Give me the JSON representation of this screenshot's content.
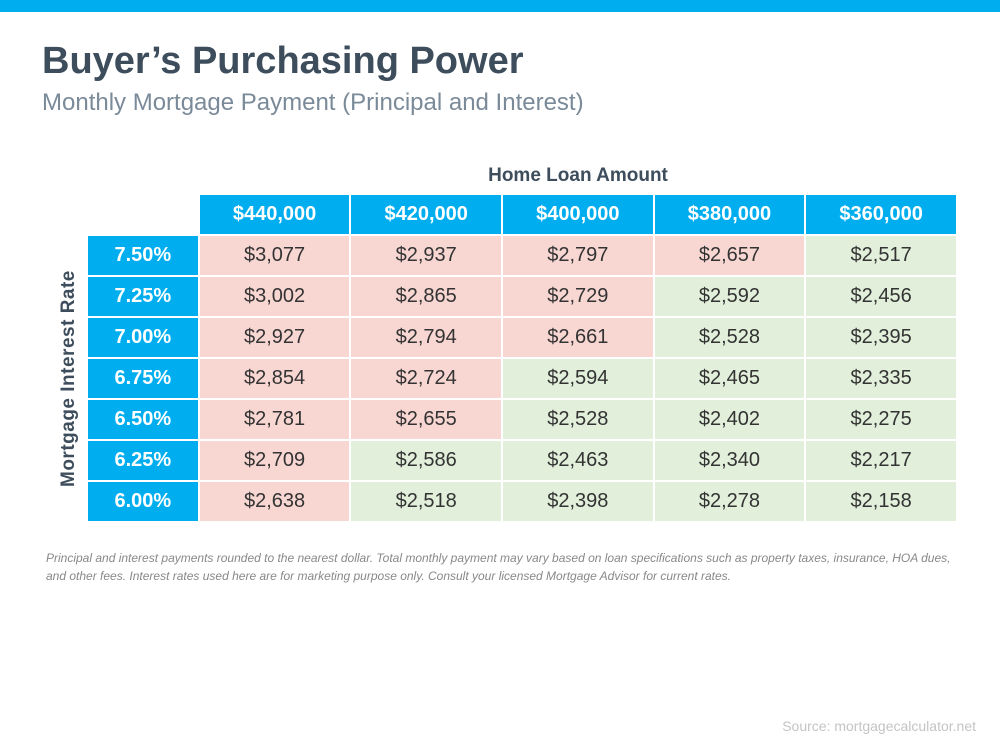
{
  "colors": {
    "accent": "#00aeef",
    "title": "#3d4d5c",
    "subtitle": "#7a8a99",
    "pink": "#f8d7d3",
    "green": "#e1efdb",
    "footnote": "#888888",
    "source": "#c4c4c4"
  },
  "title": "Buyer’s Purchasing Power",
  "subtitle": "Monthly Mortgage Payment (Principal and Interest)",
  "x_axis_label": "Home Loan Amount",
  "y_axis_label": "Mortgage   Interest Rate",
  "columns": [
    "$440,000",
    "$420,000",
    "$400,000",
    "$380,000",
    "$360,000"
  ],
  "rows": [
    {
      "rate": "7.50%",
      "cells": [
        "$3,077",
        "$2,937",
        "$2,797",
        "$2,657",
        "$2,517"
      ],
      "band": [
        "pink",
        "pink",
        "pink",
        "pink",
        "green"
      ]
    },
    {
      "rate": "7.25%",
      "cells": [
        "$3,002",
        "$2,865",
        "$2,729",
        "$2,592",
        "$2,456"
      ],
      "band": [
        "pink",
        "pink",
        "pink",
        "green",
        "green"
      ]
    },
    {
      "rate": "7.00%",
      "cells": [
        "$2,927",
        "$2,794",
        "$2,661",
        "$2,528",
        "$2,395"
      ],
      "band": [
        "pink",
        "pink",
        "pink",
        "green",
        "green"
      ]
    },
    {
      "rate": "6.75%",
      "cells": [
        "$2,854",
        "$2,724",
        "$2,594",
        "$2,465",
        "$2,335"
      ],
      "band": [
        "pink",
        "pink",
        "green",
        "green",
        "green"
      ]
    },
    {
      "rate": "6.50%",
      "cells": [
        "$2,781",
        "$2,655",
        "$2,528",
        "$2,402",
        "$2,275"
      ],
      "band": [
        "pink",
        "pink",
        "green",
        "green",
        "green"
      ]
    },
    {
      "rate": "6.25%",
      "cells": [
        "$2,709",
        "$2,586",
        "$2,463",
        "$2,340",
        "$2,217"
      ],
      "band": [
        "pink",
        "green",
        "green",
        "green",
        "green"
      ]
    },
    {
      "rate": "6.00%",
      "cells": [
        "$2,638",
        "$2,518",
        "$2,398",
        "$2,278",
        "$2,158"
      ],
      "band": [
        "pink",
        "green",
        "green",
        "green",
        "green"
      ]
    }
  ],
  "footnote": "Principal and interest payments rounded to the nearest dollar. Total monthly payment may vary based on loan specifications such as property taxes, insurance, HOA dues, and other fees. Interest rates used here are for marketing purpose only. Consult your licensed Mortgage Advisor for current rates.",
  "source": "Source: mortgagecalculator.net"
}
